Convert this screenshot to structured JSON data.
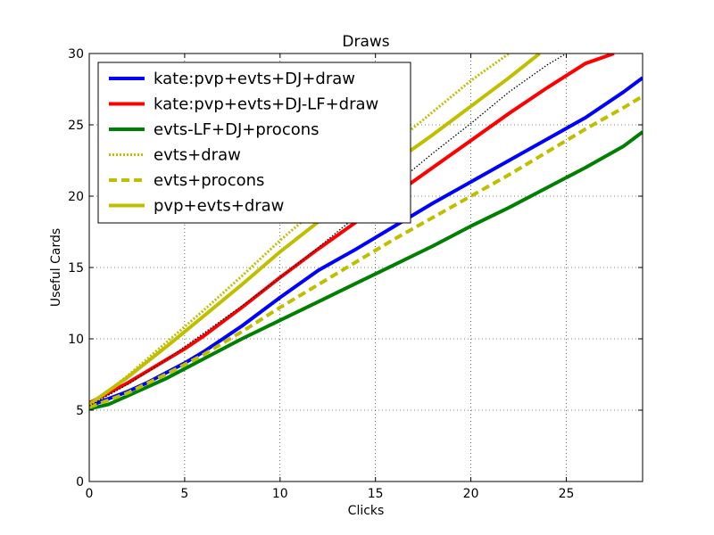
{
  "chart_data": {
    "type": "line",
    "title": "Draws",
    "xlabel": "Clicks",
    "ylabel": "Useful Cards",
    "xlim": [
      0,
      29
    ],
    "ylim": [
      0,
      30
    ],
    "xticks": [
      0,
      5,
      10,
      15,
      20,
      25
    ],
    "yticks": [
      0,
      5,
      10,
      15,
      20,
      25,
      30
    ],
    "grid": true,
    "legend_position": "top-left",
    "series": [
      {
        "name": "kate:pvp+evts+DJ+draw",
        "color": "#0000ff",
        "style": "solid",
        "x": [
          0,
          1,
          2,
          3,
          4,
          5,
          6,
          7,
          8,
          9,
          10,
          12,
          14,
          16,
          18,
          20,
          22,
          24,
          26,
          28,
          29
        ],
        "y": [
          5.3,
          5.8,
          6.3,
          6.9,
          7.6,
          8.3,
          9.1,
          10.0,
          10.9,
          11.9,
          12.9,
          14.8,
          16.3,
          17.9,
          19.5,
          21.0,
          22.5,
          24.0,
          25.5,
          27.3,
          28.3
        ]
      },
      {
        "name": "kate:pvp+evts+DJ-LF+draw",
        "color": "#ff0000",
        "style": "solid",
        "x": [
          0,
          1,
          2,
          3,
          4,
          5,
          6,
          8,
          10,
          12,
          14,
          16,
          18,
          20,
          22,
          24,
          26,
          27.5
        ],
        "y": [
          5.5,
          6.2,
          6.9,
          7.7,
          8.5,
          9.3,
          10.2,
          12.2,
          14.3,
          16.3,
          18.2,
          20.1,
          22.0,
          23.9,
          25.8,
          27.6,
          29.3,
          30.0
        ]
      },
      {
        "name": "evts-LF+DJ+procons",
        "color": "#008000",
        "style": "solid",
        "x": [
          0,
          1,
          2,
          4,
          6,
          8,
          10,
          12,
          14,
          16,
          18,
          20,
          22,
          24,
          26,
          28,
          29
        ],
        "y": [
          5.1,
          5.4,
          6.0,
          7.2,
          8.6,
          10.0,
          11.3,
          12.6,
          13.9,
          15.2,
          16.5,
          17.9,
          19.2,
          20.6,
          22.0,
          23.5,
          24.5
        ]
      },
      {
        "name": "evts+draw",
        "color": "#bfbf00",
        "style": "dotted",
        "x": [
          0,
          2,
          4,
          6,
          8,
          10,
          12,
          14,
          16,
          18,
          20,
          22
        ],
        "y": [
          5.3,
          7.4,
          9.7,
          12.0,
          14.4,
          16.9,
          19.2,
          21.5,
          23.7,
          25.9,
          28.1,
          30.0
        ]
      },
      {
        "name": "evts+procons",
        "color": "#bfbf00",
        "style": "dashed",
        "x": [
          0,
          2,
          4,
          6,
          8,
          10,
          12,
          14,
          16,
          18,
          20,
          22,
          24,
          26,
          28,
          29
        ],
        "y": [
          5.2,
          6.2,
          7.5,
          8.9,
          10.5,
          12.2,
          13.8,
          15.4,
          17.0,
          18.5,
          20.0,
          21.5,
          23.1,
          24.7,
          26.2,
          27.0
        ]
      },
      {
        "name": "pvp+evts+draw",
        "color": "#bfbf00",
        "style": "solid",
        "x": [
          0,
          2,
          4,
          6,
          8,
          10,
          12,
          14,
          16,
          18,
          20,
          22,
          23.6
        ],
        "y": [
          5.4,
          7.3,
          9.4,
          11.6,
          13.8,
          16.1,
          18.2,
          20.3,
          22.4,
          24.3,
          26.3,
          28.3,
          30.0
        ]
      },
      {
        "name": "",
        "color": "#000000",
        "style": "dotted-thin",
        "x": [
          0,
          2,
          4,
          6,
          8,
          10,
          12,
          14,
          16,
          18,
          20,
          22,
          24,
          25
        ],
        "y": [
          5.3,
          6.8,
          8.5,
          10.4,
          12.3,
          14.3,
          16.4,
          18.6,
          20.8,
          23.0,
          25.1,
          27.3,
          29.2,
          30.0
        ]
      }
    ]
  }
}
